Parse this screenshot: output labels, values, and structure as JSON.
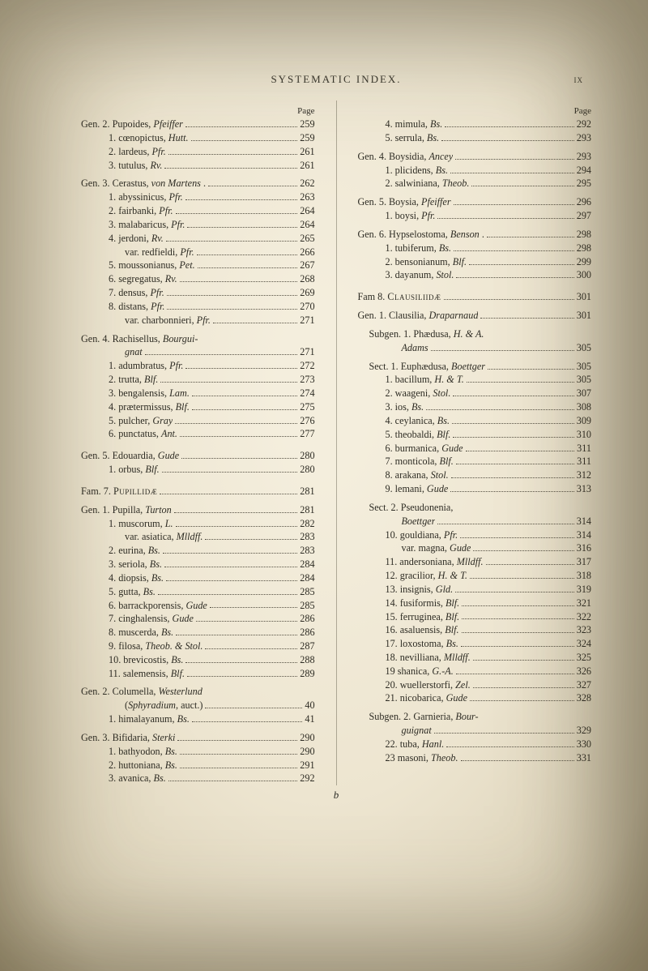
{
  "runningHead": "SYSTEMATIC INDEX.",
  "folio": "ix",
  "pageWord": "Page",
  "sigB": "b",
  "left": [
    {
      "t": "entry",
      "cls": "i0",
      "label": "Gen. 2. Pupoides, <span class='ital'>Pfeiffer</span>",
      "pg": "259"
    },
    {
      "t": "entry",
      "cls": "i2",
      "label": "1. cœnopictus, <span class='ital'>Hutt.</span>",
      "pg": "259"
    },
    {
      "t": "entry",
      "cls": "i2",
      "label": "2. lardeus, <span class='ital'>Pfr.</span>",
      "pg": "261"
    },
    {
      "t": "entry",
      "cls": "i2",
      "label": "3. tutulus, <span class='ital'>Rv.</span>",
      "pg": "261"
    },
    {
      "t": "sp"
    },
    {
      "t": "entry",
      "cls": "i0",
      "label": "Gen. 3. Cerastus, <span class='ital'>von Martens</span> .",
      "pg": "262"
    },
    {
      "t": "entry",
      "cls": "i2",
      "label": "1. abyssinicus, <span class='ital'>Pfr.</span>",
      "pg": "263"
    },
    {
      "t": "entry",
      "cls": "i2",
      "label": "2. fairbanki, <span class='ital'>Pfr.</span>",
      "pg": "264"
    },
    {
      "t": "entry",
      "cls": "i2",
      "label": "3. malabaricus, <span class='ital'>Pfr.</span>",
      "pg": "264"
    },
    {
      "t": "entry",
      "cls": "i2",
      "label": "4. jerdoni, <span class='ital'>Rv.</span>",
      "pg": "265"
    },
    {
      "t": "entry",
      "cls": "i3",
      "label": "var. redfieldi, <span class='ital'>Pfr.</span>",
      "pg": "266"
    },
    {
      "t": "entry",
      "cls": "i2",
      "label": "5. moussonianus, <span class='ital'>Pet.</span>",
      "pg": "267"
    },
    {
      "t": "entry",
      "cls": "i2",
      "label": "6. segregatus, <span class='ital'>Rv.</span>",
      "pg": "268"
    },
    {
      "t": "entry",
      "cls": "i2",
      "label": "7. densus, <span class='ital'>Pfr.</span>",
      "pg": "269"
    },
    {
      "t": "entry",
      "cls": "i2",
      "label": "8. distans, <span class='ital'>Pfr.</span>",
      "pg": "270"
    },
    {
      "t": "entry",
      "cls": "i3",
      "label": "var. charbonnieri, <span class='ital'>Pfr.</span>",
      "pg": "271"
    },
    {
      "t": "sp"
    },
    {
      "t": "plain",
      "cls": "i0",
      "label": "Gen. 4. Rachisellus, <span class='ital'>Bourgui-</span>"
    },
    {
      "t": "entry",
      "cls": "i3",
      "label": "<span class='ital'>gnat</span>",
      "pg": "271"
    },
    {
      "t": "entry",
      "cls": "i2",
      "label": "1. adumbratus, <span class='ital'>Pfr.</span>",
      "pg": "272"
    },
    {
      "t": "entry",
      "cls": "i2",
      "label": "2. trutta, <span class='ital'>Blf.</span>",
      "pg": "273"
    },
    {
      "t": "entry",
      "cls": "i2",
      "label": "3. bengalensis, <span class='ital'>Lam.</span>",
      "pg": "274"
    },
    {
      "t": "entry",
      "cls": "i2",
      "label": "4. prætermissus, <span class='ital'>Blf.</span>",
      "pg": "275"
    },
    {
      "t": "entry",
      "cls": "i2",
      "label": "5. pulcher, <span class='ital'>Gray</span>",
      "pg": "276"
    },
    {
      "t": "entry",
      "cls": "i2",
      "label": "6. punctatus, <span class='ital'>Ant.</span>",
      "pg": "277"
    },
    {
      "t": "spm"
    },
    {
      "t": "entry",
      "cls": "i0",
      "label": "Gen. 5. Edouardia, <span class='ital'>Gude</span>",
      "pg": "280"
    },
    {
      "t": "entry",
      "cls": "i2",
      "label": "1. orbus, <span class='ital'>Blf.</span>",
      "pg": "280"
    },
    {
      "t": "spm"
    },
    {
      "t": "entry",
      "cls": "i0",
      "label": "Fam. 7. <span class='smc'>Pupillidæ</span>",
      "pg": "281"
    },
    {
      "t": "sp"
    },
    {
      "t": "entry",
      "cls": "i0",
      "label": "Gen. 1. Pupilla, <span class='ital'>Turton</span>",
      "pg": "281"
    },
    {
      "t": "entry",
      "cls": "i2",
      "label": "1. muscorum, <span class='ital'>L.</span>",
      "pg": "282"
    },
    {
      "t": "entry",
      "cls": "i3",
      "label": "var. asiatica, <span class='ital'>Mlldff.</span>",
      "pg": "283"
    },
    {
      "t": "entry",
      "cls": "i2",
      "label": "2. eurina, <span class='ital'>Bs.</span>",
      "pg": "283"
    },
    {
      "t": "entry",
      "cls": "i2",
      "label": "3. seriola, <span class='ital'>Bs.</span>",
      "pg": "284"
    },
    {
      "t": "entry",
      "cls": "i2",
      "label": "4. diopsis, <span class='ital'>Bs.</span>",
      "pg": "284"
    },
    {
      "t": "entry",
      "cls": "i2",
      "label": "5. gutta, <span class='ital'>Bs.</span>",
      "pg": "285"
    },
    {
      "t": "entry",
      "cls": "i2",
      "label": "6. barrackporensis, <span class='ital'>Gude</span>",
      "pg": "285"
    },
    {
      "t": "entry",
      "cls": "i2",
      "label": "7. cinghalensis, <span class='ital'>Gude</span>",
      "pg": "286"
    },
    {
      "t": "entry",
      "cls": "i2",
      "label": "8. muscerda, <span class='ital'>Bs.</span>",
      "pg": "286"
    },
    {
      "t": "entry",
      "cls": "i2",
      "label": "9. filosa, <span class='ital'>Theob. &amp; Stol.</span>",
      "pg": "2⁠87"
    },
    {
      "t": "entry",
      "cls": "i2",
      "label": "10. brevicostis, <span class='ital'>Bs.</span>",
      "pg": "288"
    },
    {
      "t": "entry",
      "cls": "i2",
      "label": "11. salemensis, <span class='ital'>Blf.</span>",
      "pg": "289"
    },
    {
      "t": "sp"
    },
    {
      "t": "plain",
      "cls": "i0",
      "label": "Gen. 2. Columella, <span class='ital'>Westerlund</span>"
    },
    {
      "t": "entry",
      "cls": "i3",
      "label": "(<span class='ital'>Sphyradium</span>, auct.)",
      "pg": "40"
    },
    {
      "t": "entry",
      "cls": "i2",
      "label": "1. himalayanum, <span class='ital'>Bs.</span>",
      "pg": "41"
    },
    {
      "t": "sp"
    },
    {
      "t": "entry",
      "cls": "i0",
      "label": "Gen. 3. Bifidaria, <span class='ital'>Sterki</span>",
      "pg": "290"
    },
    {
      "t": "entry",
      "cls": "i2",
      "label": "1. bathyodon, <span class='ital'>Bs.</span>",
      "pg": "290"
    },
    {
      "t": "entry",
      "cls": "i2",
      "label": "2. huttoniana, <span class='ital'>Bs.</span>",
      "pg": "291"
    },
    {
      "t": "entry",
      "cls": "i2",
      "label": "3. avanica, <span class='ital'>Bs.</span>",
      "pg": "292"
    }
  ],
  "right": [
    {
      "t": "entry",
      "cls": "i2",
      "label": "4. mimula, <span class='ital'>Bs.</span>",
      "pg": "292"
    },
    {
      "t": "entry",
      "cls": "i2",
      "label": "5. serrula, <span class='ital'>Bs.</span>",
      "pg": "293"
    },
    {
      "t": "sp"
    },
    {
      "t": "entry",
      "cls": "i0",
      "label": "Gen. 4. Boysidia, <span class='ital'>Ancey</span>",
      "pg": "293"
    },
    {
      "t": "entry",
      "cls": "i2",
      "label": "1. plicidens, <span class='ital'>Bs.</span>",
      "pg": "294"
    },
    {
      "t": "entry",
      "cls": "i2",
      "label": "2. salwiniana, <span class='ital'>Theob.</span>",
      "pg": "295"
    },
    {
      "t": "sp"
    },
    {
      "t": "entry",
      "cls": "i0",
      "label": "Gen. 5. Boysia, <span class='ital'>Pfeiffer</span>",
      "pg": "296"
    },
    {
      "t": "entry",
      "cls": "i2",
      "label": "1. boysi, <span class='ital'>Pfr.</span>",
      "pg": "297"
    },
    {
      "t": "sp"
    },
    {
      "t": "entry",
      "cls": "i0",
      "label": "Gen. 6. Hypselostoma, <span class='ital'>Benson</span> .",
      "pg": "298"
    },
    {
      "t": "entry",
      "cls": "i2",
      "label": "1. tubiferum, <span class='ital'>Bs.</span>",
      "pg": "298"
    },
    {
      "t": "entry",
      "cls": "i2",
      "label": "2. bensonianum, <span class='ital'>Blf.</span>",
      "pg": "299"
    },
    {
      "t": "entry",
      "cls": "i2",
      "label": "3. dayanum, <span class='ital'>Stol.</span>",
      "pg": "300"
    },
    {
      "t": "spm"
    },
    {
      "t": "entry",
      "cls": "i0",
      "label": "Fam 8. <span class='smc'>Clausiliidæ</span>",
      "pg": "301"
    },
    {
      "t": "sp"
    },
    {
      "t": "entry",
      "cls": "i0",
      "label": "Gen. 1. Clausilia, <span class='ital'>Draparnaud</span>",
      "pg": "301"
    },
    {
      "t": "sp"
    },
    {
      "t": "plain",
      "cls": "i1",
      "label": "Subgen. 1. Phædusa, <span class='ital'>H. &amp; A.</span>"
    },
    {
      "t": "entry",
      "cls": "i3",
      "label": "<span class='ital'>Adams</span>",
      "pg": "305"
    },
    {
      "t": "sp"
    },
    {
      "t": "entry",
      "cls": "i1",
      "label": "Sect. 1. Euphædusa, <span class='ital'>Boettger</span>",
      "pg": "305"
    },
    {
      "t": "entry",
      "cls": "i2",
      "label": "1. bacillum, <span class='ital'>H. &amp; T.</span>",
      "pg": "305"
    },
    {
      "t": "entry",
      "cls": "i2",
      "label": "2. waageni, <span class='ital'>Stol.</span>",
      "pg": "307"
    },
    {
      "t": "entry",
      "cls": "i2",
      "label": "3. ios, <span class='ital'>Bs.</span>",
      "pg": "308"
    },
    {
      "t": "entry",
      "cls": "i2",
      "label": "4. ceylanica, <span class='ital'>Bs.</span>",
      "pg": "309"
    },
    {
      "t": "entry",
      "cls": "i2",
      "label": "5. theobaldi, <span class='ital'>Blf.</span>",
      "pg": "310"
    },
    {
      "t": "entry",
      "cls": "i2",
      "label": "6. burmanica, <span class='ital'>Gude</span>",
      "pg": "311"
    },
    {
      "t": "entry",
      "cls": "i2",
      "label": "7. monticola, <span class='ital'>Blf.</span>",
      "pg": "311"
    },
    {
      "t": "entry",
      "cls": "i2",
      "label": "8. arakana, <span class='ital'>Stol.</span>",
      "pg": "312"
    },
    {
      "t": "entry",
      "cls": "i2",
      "label": "9. lemani, <span class='ital'>Gude</span>",
      "pg": "313"
    },
    {
      "t": "sp"
    },
    {
      "t": "plain",
      "cls": "i1",
      "label": "Sect. 2. Pseudonenia,"
    },
    {
      "t": "entry",
      "cls": "i3",
      "label": "<span class='ital'>Boettger</span>",
      "pg": "314"
    },
    {
      "t": "entry",
      "cls": "i2",
      "label": "10. gouldiana, <span class='ital'>Pfr.</span>",
      "pg": "314"
    },
    {
      "t": "entry",
      "cls": "i3",
      "label": "var. magna, <span class='ital'>Gude</span>",
      "pg": "316"
    },
    {
      "t": "entry",
      "cls": "i2",
      "label": "11. andersoniana, <span class='ital'>Mlldff.</span>",
      "pg": "317"
    },
    {
      "t": "entry",
      "cls": "i2",
      "label": "12. gracilior, <span class='ital'>H. &amp; T.</span>",
      "pg": "318"
    },
    {
      "t": "entry",
      "cls": "i2",
      "label": "13. insignis, <span class='ital'>Gld.</span>",
      "pg": "319"
    },
    {
      "t": "entry",
      "cls": "i2",
      "label": "14. fusiformis, <span class='ital'>Blf.</span>",
      "pg": "321"
    },
    {
      "t": "entry",
      "cls": "i2",
      "label": "15. ferruginea, <span class='ital'>Blf.</span>",
      "pg": "322"
    },
    {
      "t": "entry",
      "cls": "i2",
      "label": "16. asaluensis, <span class='ital'>Blf.</span>",
      "pg": "323"
    },
    {
      "t": "entry",
      "cls": "i2",
      "label": "17. loxostoma, <span class='ital'>Bs.</span>",
      "pg": "324"
    },
    {
      "t": "entry",
      "cls": "i2",
      "label": "18. nevilliana, <span class='ital'>Mlldff.</span>",
      "pg": "325"
    },
    {
      "t": "entry",
      "cls": "i2",
      "label": "19  shanica, <span class='ital'>G.-A.</span>",
      "pg": "326"
    },
    {
      "t": "entry",
      "cls": "i2",
      "label": "20. wuellerstorfi, <span class='ital'>Zel.</span>",
      "pg": "327"
    },
    {
      "t": "entry",
      "cls": "i2",
      "label": "21. nicobarica, <span class='ital'>Gude</span>",
      "pg": "328"
    },
    {
      "t": "sp"
    },
    {
      "t": "plain",
      "cls": "i1",
      "label": "Subgen. 2. Garnieria, <span class='ital'>Bour-</span>"
    },
    {
      "t": "entry",
      "cls": "i3",
      "label": "<span class='ital'>guignat</span>",
      "pg": "329"
    },
    {
      "t": "entry",
      "cls": "i2",
      "label": "22. tuba, <span class='ital'>Hanl.</span>",
      "pg": "330"
    },
    {
      "t": "entry",
      "cls": "i2",
      "label": "23  masoni, <span class='ital'>Theob.</span>",
      "pg": "331"
    }
  ]
}
